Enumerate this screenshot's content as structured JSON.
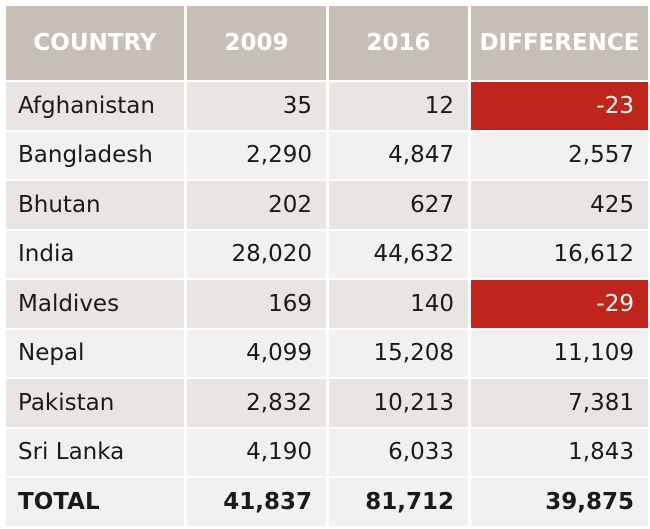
{
  "chart_data": {
    "type": "table",
    "columns": [
      "COUNTRY",
      "2009",
      "2016",
      "DIFFERENCE"
    ],
    "rows": [
      {
        "country": "Afghanistan",
        "y2009": "35",
        "y2016": "12",
        "difference": "-23",
        "negative": true
      },
      {
        "country": "Bangladesh",
        "y2009": "2,290",
        "y2016": "4,847",
        "difference": "2,557",
        "negative": false
      },
      {
        "country": "Bhutan",
        "y2009": "202",
        "y2016": "627",
        "difference": "425",
        "negative": false
      },
      {
        "country": "India",
        "y2009": "28,020",
        "y2016": "44,632",
        "difference": "16,612",
        "negative": false
      },
      {
        "country": "Maldives",
        "y2009": "169",
        "y2016": "140",
        "difference": "-29",
        "negative": true
      },
      {
        "country": "Nepal",
        "y2009": "4,099",
        "y2016": "15,208",
        "difference": "11,109",
        "negative": false
      },
      {
        "country": "Pakistan",
        "y2009": "2,832",
        "y2016": "10,213",
        "difference": "7,381",
        "negative": false
      },
      {
        "country": "Sri Lanka",
        "y2009": "4,190",
        "y2016": "6,033",
        "difference": "1,843",
        "negative": false
      }
    ],
    "total": {
      "label": "TOTAL",
      "y2009": "41,837",
      "y2016": "81,712",
      "difference": "39,875"
    }
  },
  "colors": {
    "header_bg": "#c6bfb8",
    "row_shade_a": "#e9e5e2",
    "row_shade_b": "#f3f1ef",
    "negative_bg": "#c0251b"
  }
}
